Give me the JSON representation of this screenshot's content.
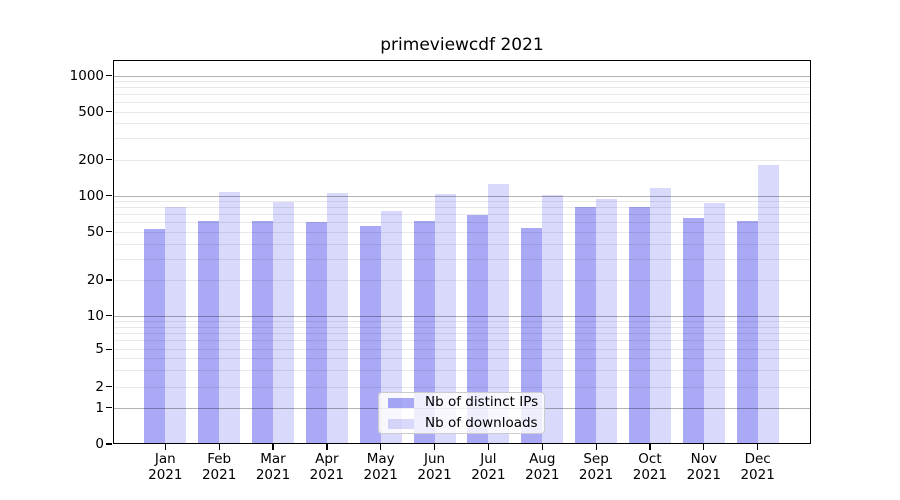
{
  "chart_data": {
    "type": "bar",
    "title": "primeviewcdf 2021",
    "categories": [
      "Jan",
      "Feb",
      "Mar",
      "Apr",
      "May",
      "Jun",
      "Jul",
      "Aug",
      "Sep",
      "Oct",
      "Nov",
      "Dec"
    ],
    "category_year": "2021",
    "series": [
      {
        "name": "Nb of distinct IPs",
        "color": "rgba(10,10,230,0.35)",
        "values": [
          53,
          62,
          62,
          60,
          56,
          62,
          69,
          54,
          80,
          80,
          65,
          61
        ]
      },
      {
        "name": "Nb of downloads",
        "color": "rgba(10,10,230,0.155)",
        "values": [
          81,
          108,
          88,
          105,
          74,
          103,
          125,
          101,
          93,
          117,
          87,
          180
        ]
      }
    ],
    "yscale": "symlog",
    "ylim": [
      0,
      1350
    ],
    "yticks": [
      {
        "label": "1000",
        "value": 1000
      },
      {
        "label": "500",
        "value": 500
      },
      {
        "label": "200",
        "value": 200
      },
      {
        "label": "100",
        "value": 100
      },
      {
        "label": "50",
        "value": 50
      },
      {
        "label": "20",
        "value": 20
      },
      {
        "label": "10",
        "value": 10
      },
      {
        "label": "5",
        "value": 5
      },
      {
        "label": "2",
        "value": 2
      },
      {
        "label": "1",
        "value": 1
      },
      {
        "label": "0",
        "value": 0
      }
    ],
    "grid": true,
    "legend_position": "lower center"
  }
}
